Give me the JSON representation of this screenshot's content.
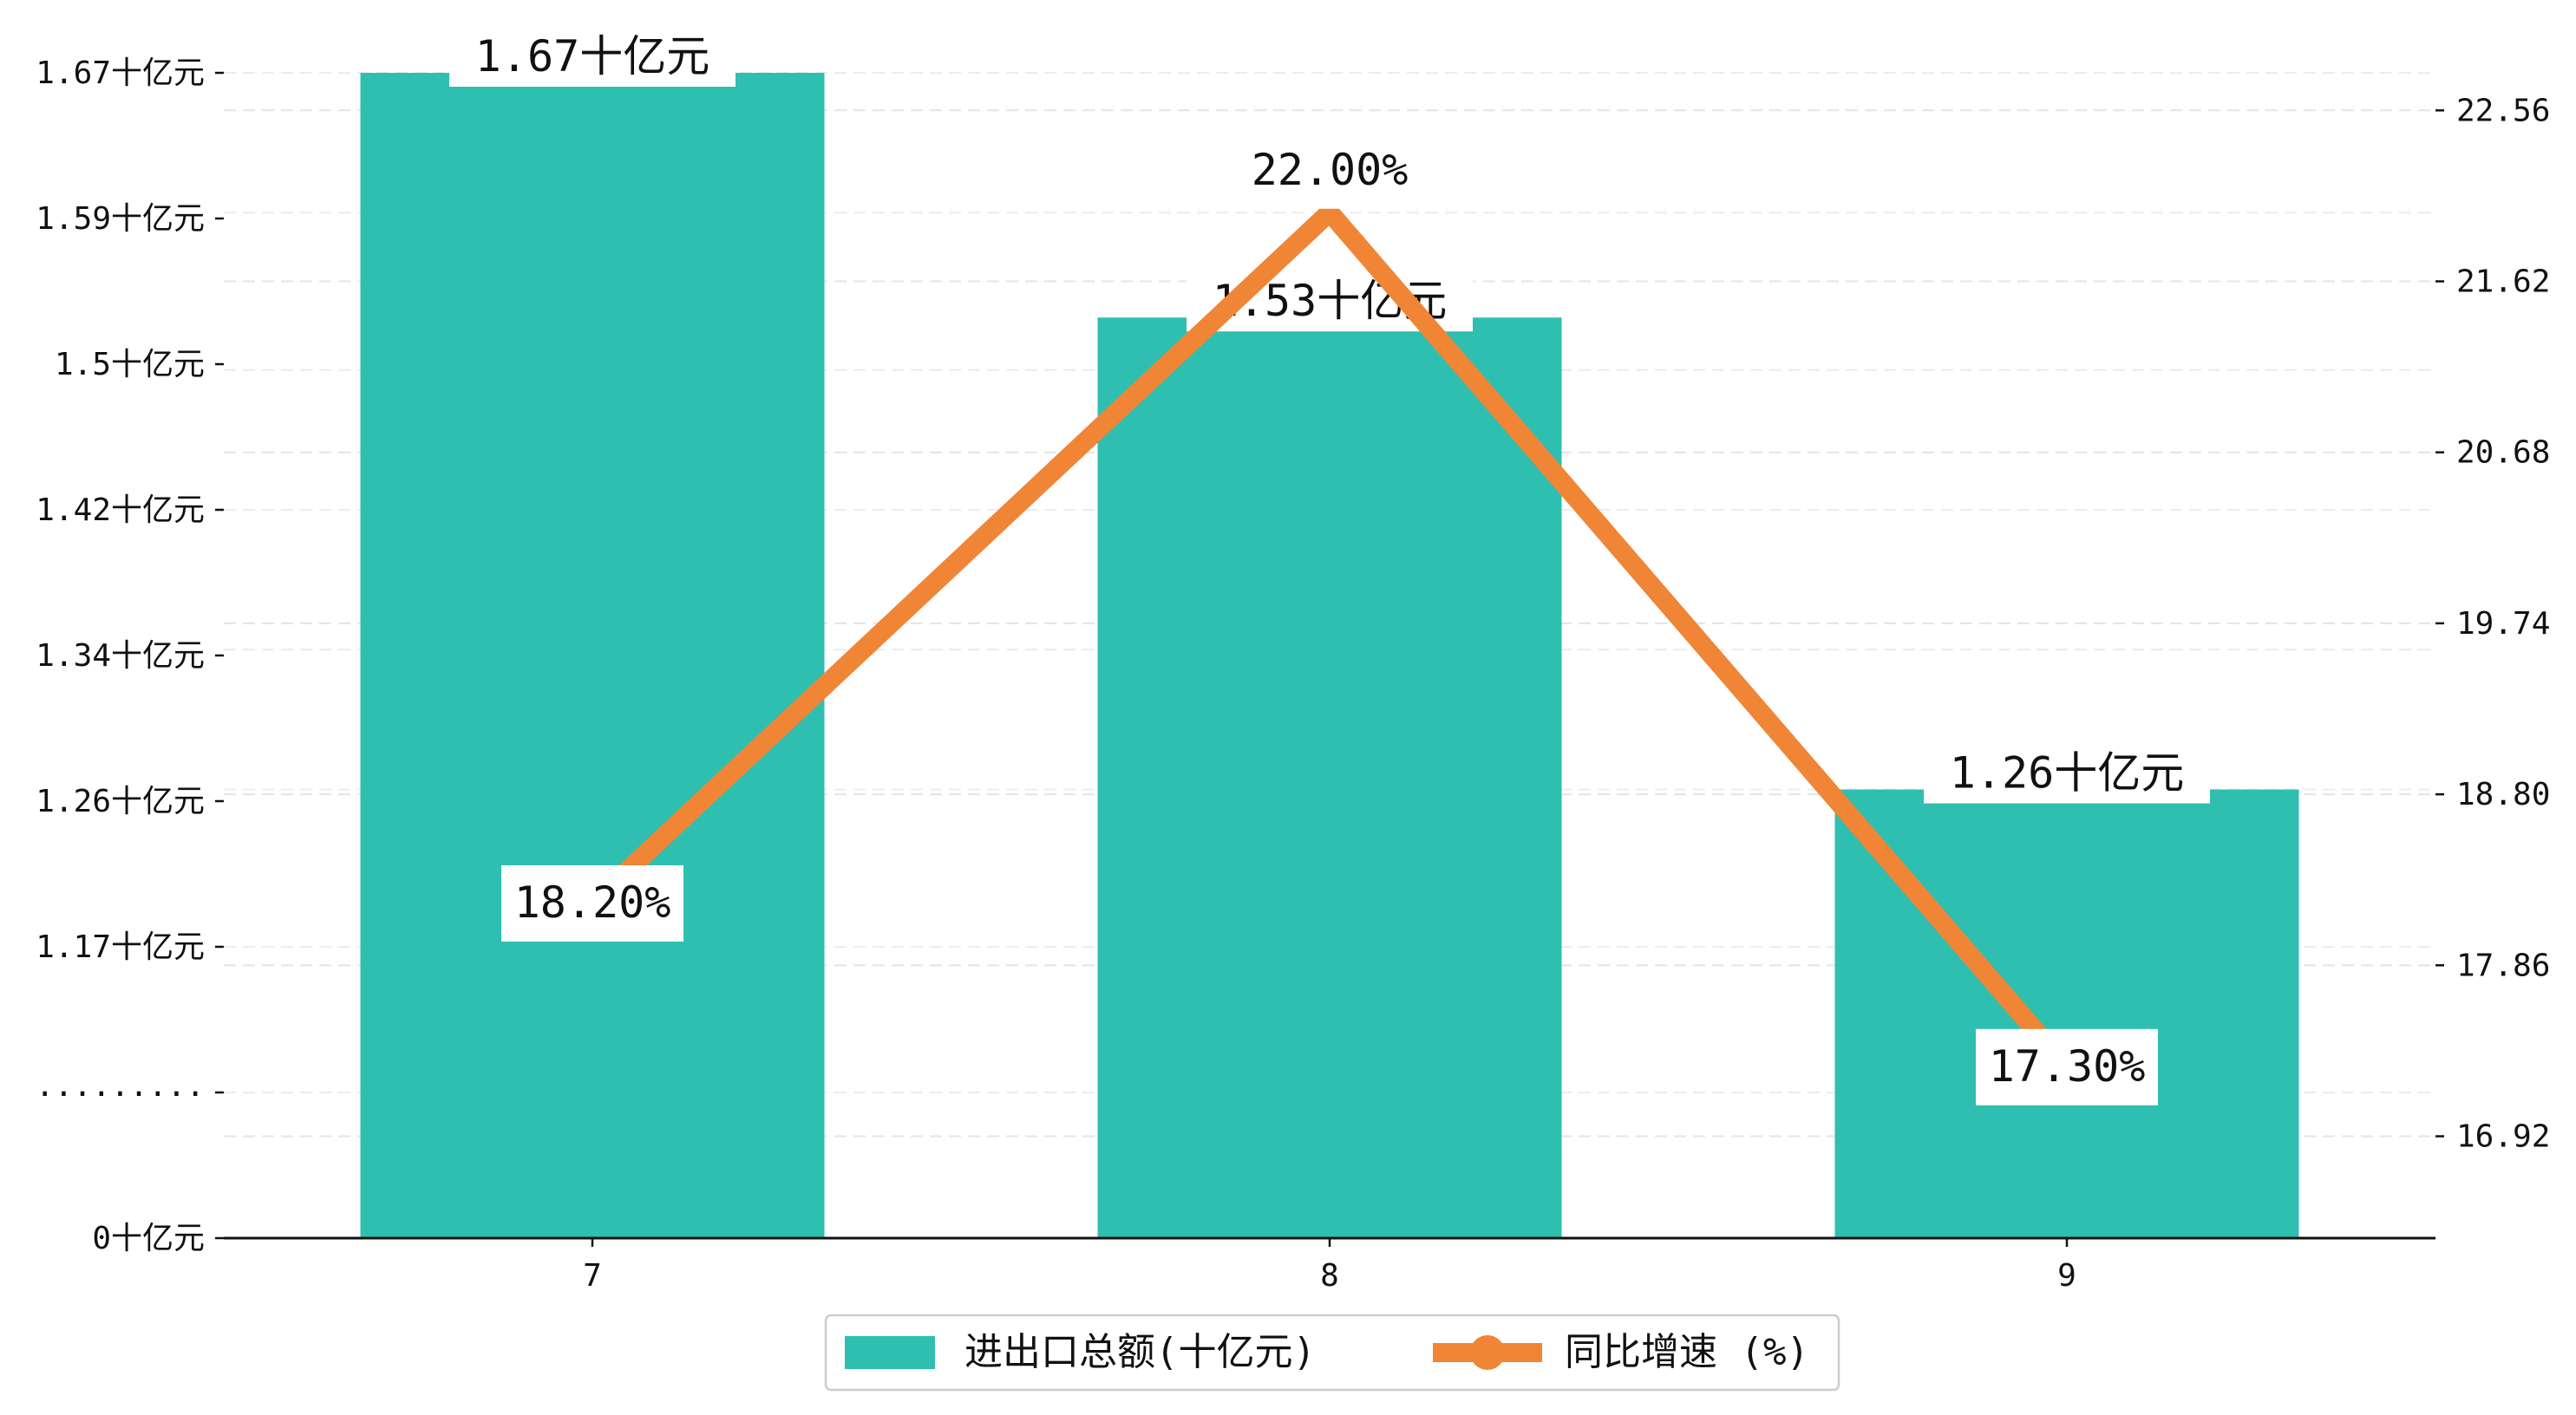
{
  "chart_data": {
    "type": "bar",
    "categories": [
      "7",
      "8",
      "9"
    ],
    "series": [
      {
        "name": "进出口总额(十亿元)",
        "kind": "bar",
        "axis": "left",
        "color": "#2fbfb0",
        "values": [
          1.67,
          1.53,
          1.26
        ],
        "labels": [
          "1.67十亿元",
          "1.53十亿元",
          "1.26十亿元"
        ]
      },
      {
        "name": "同比增速 (%)",
        "kind": "line",
        "axis": "right",
        "color": "#f08535",
        "values": [
          18.2,
          22.0,
          17.3
        ],
        "labels": [
          "18.20%",
          "22.00%",
          "17.30%"
        ]
      }
    ],
    "y_left": {
      "ticks": [
        0,
        1.17,
        1.26,
        1.34,
        1.42,
        1.5,
        1.59,
        1.67
      ],
      "tick_labels": [
        "0十亿元",
        "1.17十亿元",
        "1.26十亿元",
        "1.34十亿元",
        "1.42十亿元",
        "1.5十亿元",
        "1.59十亿元",
        "1.67十亿元"
      ],
      "break_label": ".........",
      "broken_axis": true
    },
    "y_right": {
      "ticks": [
        16.92,
        17.86,
        18.8,
        19.74,
        20.68,
        21.62,
        22.56
      ],
      "tick_labels": [
        "16.92",
        "17.86",
        "18.80",
        "19.74",
        "20.68",
        "21.62",
        "22.56"
      ],
      "ylim": [
        16.36,
        23.0
      ]
    },
    "grid": true,
    "legend_position": "bottom-center"
  }
}
